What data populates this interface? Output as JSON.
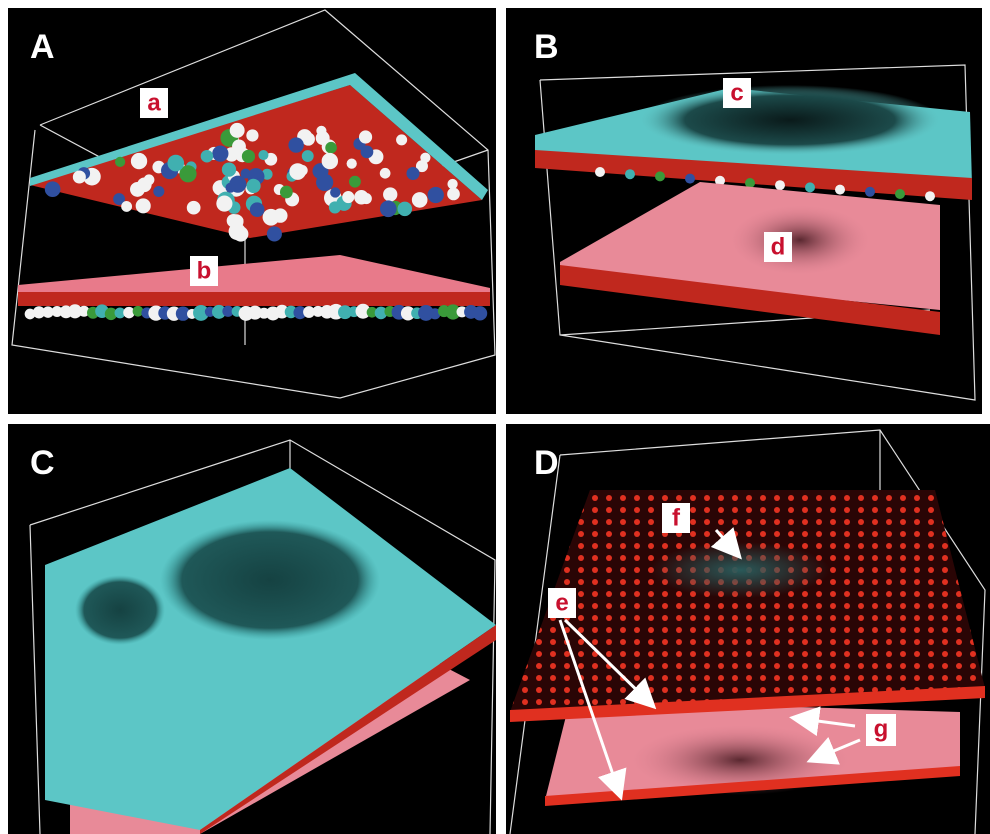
{
  "panel_letters": [
    "A",
    "B",
    "C",
    "D"
  ],
  "labels": [
    "a",
    "b",
    "c",
    "d",
    "e",
    "f",
    "g"
  ]
}
